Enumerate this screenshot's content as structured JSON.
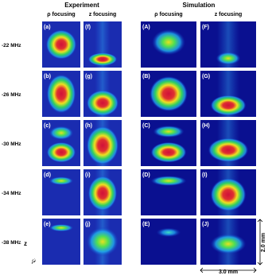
{
  "headers": {
    "experiment": "Experiment",
    "simulation": "Simulation"
  },
  "columns": [
    "ρ focusing",
    "z focusing",
    "ρ focusing",
    "z focusing"
  ],
  "rows": [
    {
      "label": "-22 MHz",
      "panels": [
        "(a)",
        "(f)",
        "(A)",
        "(F)"
      ]
    },
    {
      "label": "-26 MHz",
      "panels": [
        "(b)",
        "(g)",
        "(B)",
        "(G)"
      ]
    },
    {
      "label": "-30 MHz",
      "panels": [
        "(c)",
        "(h)",
        "(C)",
        "(H)"
      ]
    },
    {
      "label": "-34 MHz",
      "panels": [
        "(d)",
        "(i)",
        "(D)",
        "(I)"
      ]
    },
    {
      "label": "-38 MHz",
      "panels": [
        "(e)",
        "(j)",
        "(E)",
        "(J)"
      ]
    }
  ],
  "axes": {
    "z": "z",
    "rho": "ρ"
  },
  "scale": {
    "vertical": "2.0 mm",
    "horizontal": "3.0 mm"
  }
}
